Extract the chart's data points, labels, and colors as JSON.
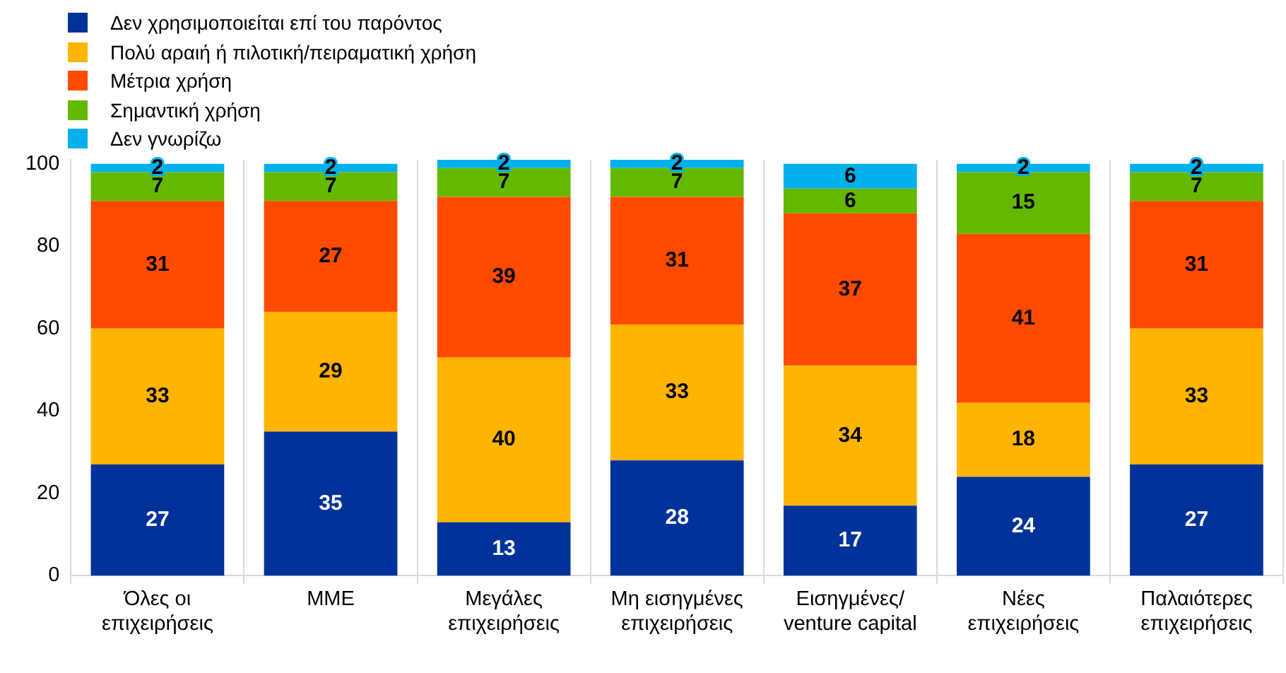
{
  "chart_data": {
    "type": "bar",
    "stacked": true,
    "categories": [
      "Όλες οι επιχειρήσεις",
      "ΜΜΕ",
      "Μεγάλες επιχειρήσεις",
      "Μη εισηγμένες επιχειρήσεις",
      "Εισηγμένες/ venture capital",
      "Νέες επιχειρήσεις",
      "Παλαιότερες επιχειρήσεις"
    ],
    "series": [
      {
        "name": "Δεν χρησιμοποιείται επί του παρόντος",
        "color": "#003299",
        "values": [
          27,
          35,
          13,
          28,
          17,
          24,
          27
        ]
      },
      {
        "name": "Πολύ αραιή ή πιλοτική/πειραματική χρήση",
        "color": "#ffb400",
        "values": [
          33,
          29,
          40,
          33,
          34,
          18,
          33
        ]
      },
      {
        "name": "Μέτρια χρήση",
        "color": "#ff4b00",
        "values": [
          31,
          27,
          39,
          31,
          37,
          41,
          31
        ]
      },
      {
        "name": "Σημαντική χρήση",
        "color": "#65b800",
        "values": [
          7,
          7,
          7,
          7,
          6,
          15,
          7
        ]
      },
      {
        "name": "Δεν γνωρίζω",
        "color": "#00b1ea",
        "values": [
          2,
          2,
          2,
          2,
          6,
          2,
          2
        ]
      }
    ],
    "ylim": [
      0,
      101
    ],
    "yticks": [
      0,
      20,
      40,
      60,
      80,
      100
    ],
    "grid": "x",
    "legend": "top left",
    "data_labels": true
  }
}
